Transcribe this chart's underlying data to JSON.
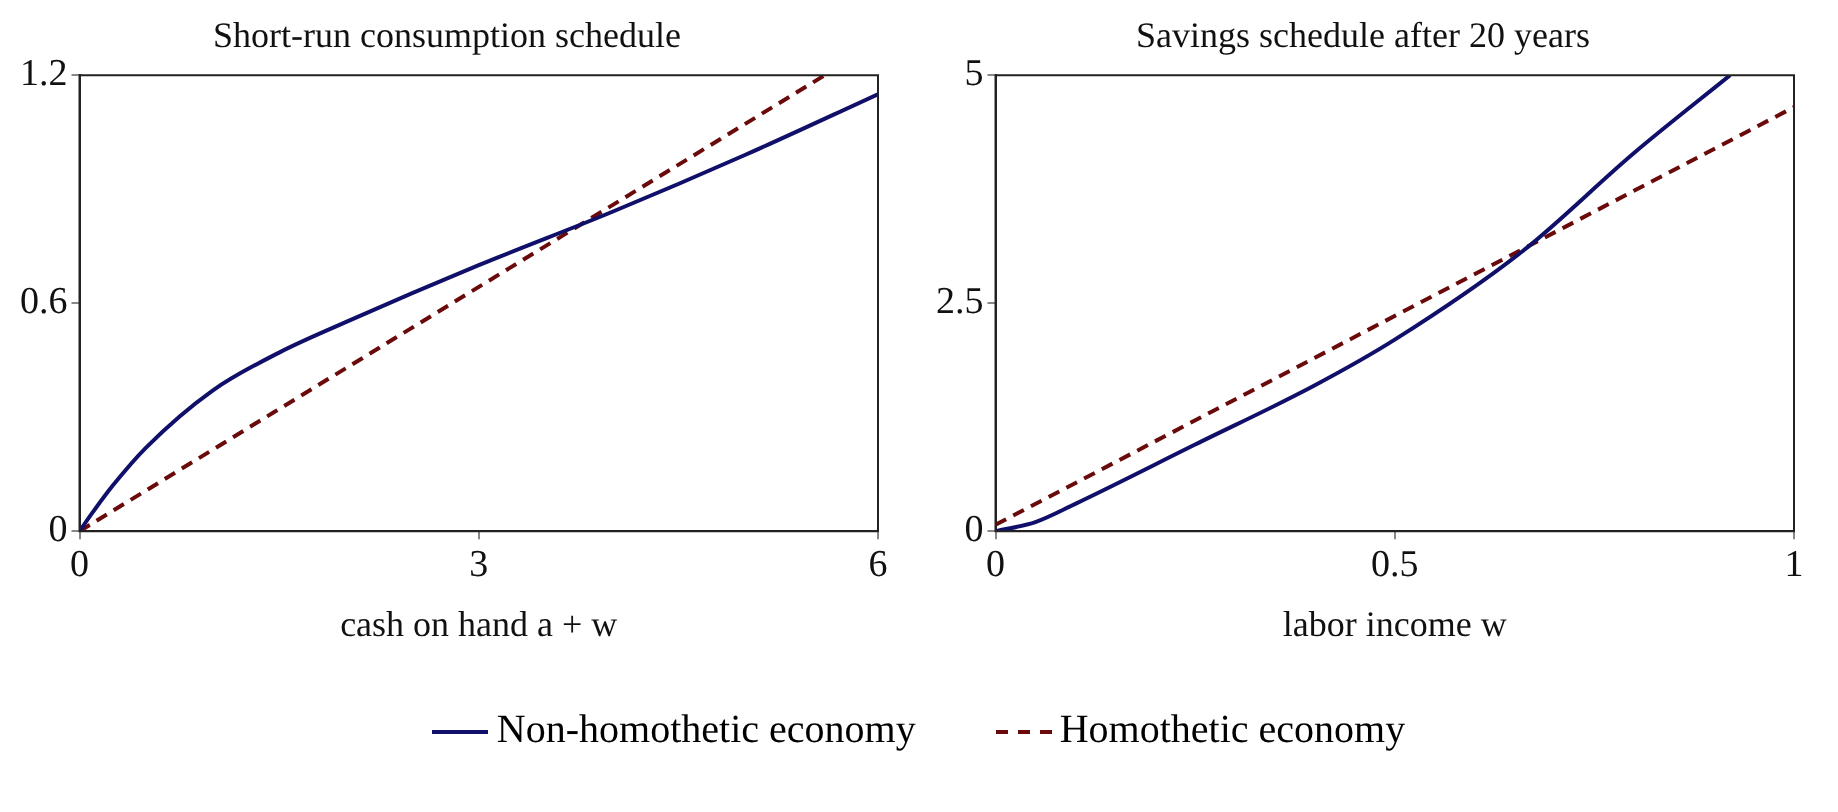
{
  "chart_data": [
    {
      "type": "line",
      "title": "Short-run consumption schedule",
      "xlabel": "cash on hand a + w",
      "xlim": [
        0,
        6
      ],
      "xticks": [
        0,
        3,
        6
      ],
      "ylim": [
        0,
        1.2
      ],
      "yticks": [
        0,
        0.6,
        1.2
      ],
      "grid": false,
      "legend": "bottom",
      "series": [
        {
          "name": "Non-homothetic economy",
          "color": "#10106a",
          "line_style": "solid",
          "x": [
            0,
            0.1,
            0.25,
            0.5,
            1,
            1.5,
            2,
            3,
            4,
            5,
            6
          ],
          "values": [
            0,
            0.05,
            0.12,
            0.22,
            0.37,
            0.47,
            0.55,
            0.7,
            0.84,
            0.99,
            1.15
          ]
        },
        {
          "name": "Homothetic economy",
          "color": "#6b0a0a",
          "line_style": "dashed",
          "x": [
            0,
            5.6
          ],
          "values": [
            0,
            1.2
          ]
        }
      ]
    },
    {
      "type": "line",
      "title": "Savings schedule after 20 years",
      "xlabel": "labor income w",
      "xlim": [
        0,
        1
      ],
      "xticks": [
        0,
        0.5,
        1
      ],
      "ylim": [
        0,
        5
      ],
      "yticks": [
        0,
        2.5,
        5
      ],
      "grid": false,
      "series": [
        {
          "color": "#10106a",
          "line_style": "solid",
          "x": [
            0,
            0.05,
            0.1,
            0.25,
            0.4,
            0.5,
            0.66,
            0.8,
            0.92
          ],
          "values": [
            0,
            0.1,
            0.3,
            0.95,
            1.6,
            2.1,
            3.07,
            4.15,
            5
          ]
        },
        {
          "color": "#6b0a0a",
          "line_style": "dashed",
          "x": [
            0,
            1
          ],
          "values": [
            0.07,
            4.65
          ]
        }
      ]
    }
  ]
}
